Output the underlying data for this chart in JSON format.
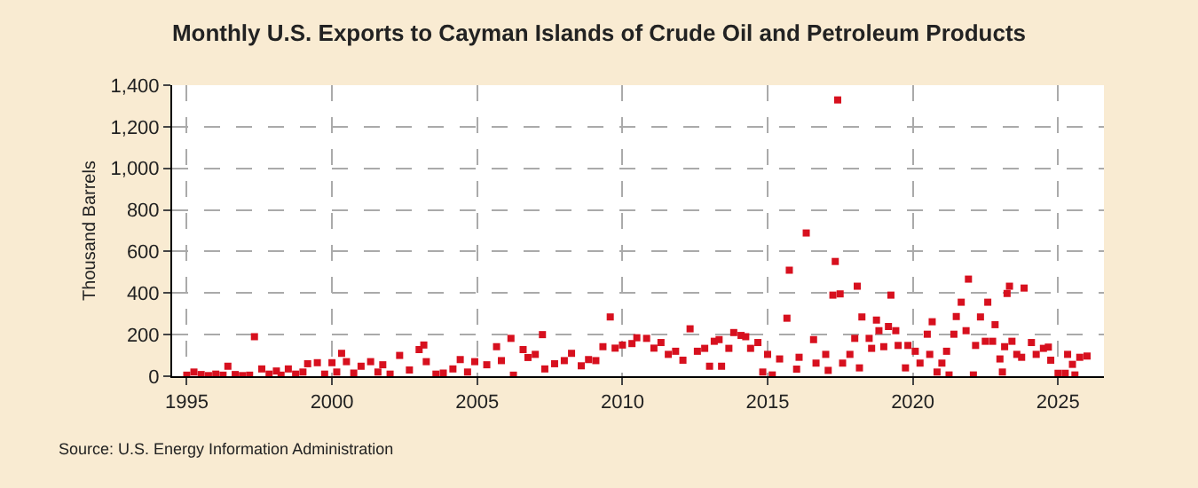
{
  "chart_data": {
    "type": "scatter",
    "title": "Monthly U.S. Exports to Cayman Islands of Crude Oil and Petroleum Products",
    "ylabel": "Thousand Barrels",
    "annotations": [
      "Source: U.S. Energy Information Administration"
    ],
    "x": [
      "1995-01",
      "1995-04",
      "1995-07",
      "1995-10",
      "1996-01",
      "1996-04",
      "1996-06",
      "1996-09",
      "1996-12",
      "1997-03",
      "1997-05",
      "1997-08",
      "1997-11",
      "1998-02",
      "1998-04",
      "1998-07",
      "1998-10",
      "1999-01",
      "1999-03",
      "1999-07",
      "1999-10",
      "2000-01",
      "2000-03",
      "2000-05",
      "2000-07",
      "2000-10",
      "2001-01",
      "2001-05",
      "2001-08",
      "2001-10",
      "2002-01",
      "2002-05",
      "2002-09",
      "2003-01",
      "2003-03",
      "2003-04",
      "2003-08",
      "2003-11",
      "2004-03",
      "2004-06",
      "2004-09",
      "2004-12",
      "2005-05",
      "2005-09",
      "2005-11",
      "2006-03",
      "2006-04",
      "2006-08",
      "2006-10",
      "2007-01",
      "2007-04",
      "2007-05",
      "2007-09",
      "2008-01",
      "2008-04",
      "2008-08",
      "2008-11",
      "2009-02",
      "2009-05",
      "2009-08",
      "2009-10",
      "2010-01",
      "2010-05",
      "2010-07",
      "2010-11",
      "2011-02",
      "2011-05",
      "2011-08",
      "2011-11",
      "2012-02",
      "2012-05",
      "2012-08",
      "2012-11",
      "2013-01",
      "2013-03",
      "2013-05",
      "2013-06",
      "2013-09",
      "2013-11",
      "2014-02",
      "2014-04",
      "2014-06",
      "2014-09",
      "2014-11",
      "2015-01",
      "2015-03",
      "2015-06",
      "2015-09",
      "2015-10",
      "2016-01",
      "2016-02",
      "2016-05",
      "2016-08",
      "2016-09",
      "2017-01",
      "2017-02",
      "2017-04",
      "2017-05",
      "2017-06",
      "2017-07",
      "2017-08",
      "2017-11",
      "2018-01",
      "2018-02",
      "2018-03",
      "2018-04",
      "2018-07",
      "2018-08",
      "2018-10",
      "2018-11",
      "2019-01",
      "2019-03",
      "2019-04",
      "2019-06",
      "2019-07",
      "2019-10",
      "2019-11",
      "2020-02",
      "2020-04",
      "2020-07",
      "2020-08",
      "2020-09",
      "2020-11",
      "2021-01",
      "2021-03",
      "2021-04",
      "2021-06",
      "2021-07",
      "2021-09",
      "2021-11",
      "2021-12",
      "2022-02",
      "2022-03",
      "2022-05",
      "2022-07",
      "2022-08",
      "2022-10",
      "2022-11",
      "2023-01",
      "2023-02",
      "2023-03",
      "2023-04",
      "2023-05",
      "2023-06",
      "2023-08",
      "2023-10",
      "2023-11",
      "2024-02",
      "2024-04",
      "2024-07",
      "2024-09",
      "2024-10",
      "2025-01",
      "2025-04",
      "2025-05",
      "2025-07",
      "2025-08",
      "2025-10",
      "2026-01"
    ],
    "series": [
      {
        "color": "#d7101e",
        "values": [
          5,
          20,
          8,
          3,
          10,
          5,
          48,
          8,
          3,
          5,
          190,
          35,
          10,
          25,
          5,
          35,
          10,
          20,
          60,
          65,
          10,
          65,
          20,
          110,
          70,
          15,
          48,
          70,
          20,
          55,
          10,
          100,
          30,
          128,
          150,
          70,
          10,
          15,
          35,
          80,
          20,
          70,
          55,
          142,
          75,
          182,
          5,
          128,
          90,
          105,
          200,
          35,
          60,
          75,
          110,
          50,
          80,
          75,
          142,
          285,
          135,
          150,
          157,
          185,
          182,
          135,
          162,
          105,
          120,
          77,
          228,
          120,
          134,
          48,
          168,
          176,
          48,
          134,
          210,
          196,
          190,
          134,
          162,
          20,
          105,
          6,
          83,
          279,
          510,
          34,
          91,
          689,
          176,
          63,
          105,
          28,
          390,
          552,
          1329,
          396,
          63,
          105,
          182,
          433,
          40,
          285,
          182,
          134,
          270,
          219,
          142,
          239,
          390,
          219,
          148,
          40,
          148,
          120,
          63,
          202,
          105,
          262,
          20,
          63,
          120,
          6,
          202,
          287,
          356,
          219,
          467,
          6,
          148,
          285,
          168,
          356,
          168,
          248,
          83,
          20,
          142,
          398,
          433,
          168,
          105,
          91,
          424,
          162,
          105,
          134,
          140,
          77,
          14,
          14,
          105,
          57,
          6,
          91,
          97
        ]
      }
    ],
    "xlim": [
      "1994-07",
      "2026-08"
    ],
    "xticks": [
      {
        "value": "1995-01",
        "label": "1995"
      },
      {
        "value": "2000-01",
        "label": "2000"
      },
      {
        "value": "2005-01",
        "label": "2005"
      },
      {
        "value": "2010-01",
        "label": "2010"
      },
      {
        "value": "2015-01",
        "label": "2015"
      },
      {
        "value": "2020-01",
        "label": "2020"
      },
      {
        "value": "2025-01",
        "label": "2025"
      }
    ],
    "ylim": [
      0,
      1400
    ],
    "yticks": [
      {
        "value": 0,
        "label": "0"
      },
      {
        "value": 200,
        "label": "200"
      },
      {
        "value": 400,
        "label": "400"
      },
      {
        "value": 600,
        "label": "600"
      },
      {
        "value": 800,
        "label": "800"
      },
      {
        "value": 1000,
        "label": "1,000"
      },
      {
        "value": 1200,
        "label": "1,200"
      },
      {
        "value": 1400,
        "label": "1,400"
      }
    ],
    "grid": true,
    "marker": "square"
  }
}
